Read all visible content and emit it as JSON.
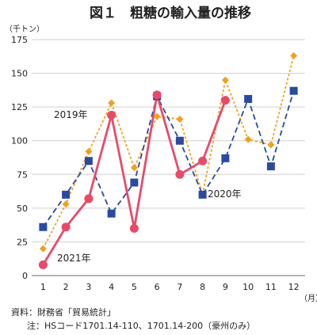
{
  "chart_data": {
    "type": "line",
    "title": "図１　粗糖の輸入量の推移",
    "ylabel": "（千トン）",
    "xlabel": "（月）",
    "categories": [
      "1",
      "2",
      "3",
      "4",
      "5",
      "6",
      "7",
      "8",
      "9",
      "10",
      "11",
      "12"
    ],
    "ylim": [
      0,
      175
    ],
    "yticks": [
      "0",
      "25",
      "50",
      "75",
      "100",
      "125",
      "150",
      "175"
    ],
    "grid": true,
    "series": [
      {
        "name": "2019年",
        "color": "#f0a020",
        "style": "dotted",
        "marker": "diamond",
        "values": [
          20,
          53,
          92,
          128,
          80,
          118,
          116,
          60,
          145,
          101,
          97,
          163
        ]
      },
      {
        "name": "2020年",
        "color": "#2a4aa0",
        "style": "dashed",
        "marker": "square",
        "values": [
          36,
          60,
          85,
          46,
          69,
          133,
          100,
          60,
          87,
          131,
          81,
          137
        ]
      },
      {
        "name": "2021年",
        "color": "#e84a6a",
        "style": "solid",
        "marker": "circle",
        "values": [
          8,
          36,
          57,
          119,
          35,
          134,
          75,
          85,
          130,
          null,
          null,
          null
        ]
      }
    ],
    "source": "資料：財務省「貿易統計」",
    "note": "注：HSコード1701.14-110、1701.14-200（豪州のみ）"
  }
}
